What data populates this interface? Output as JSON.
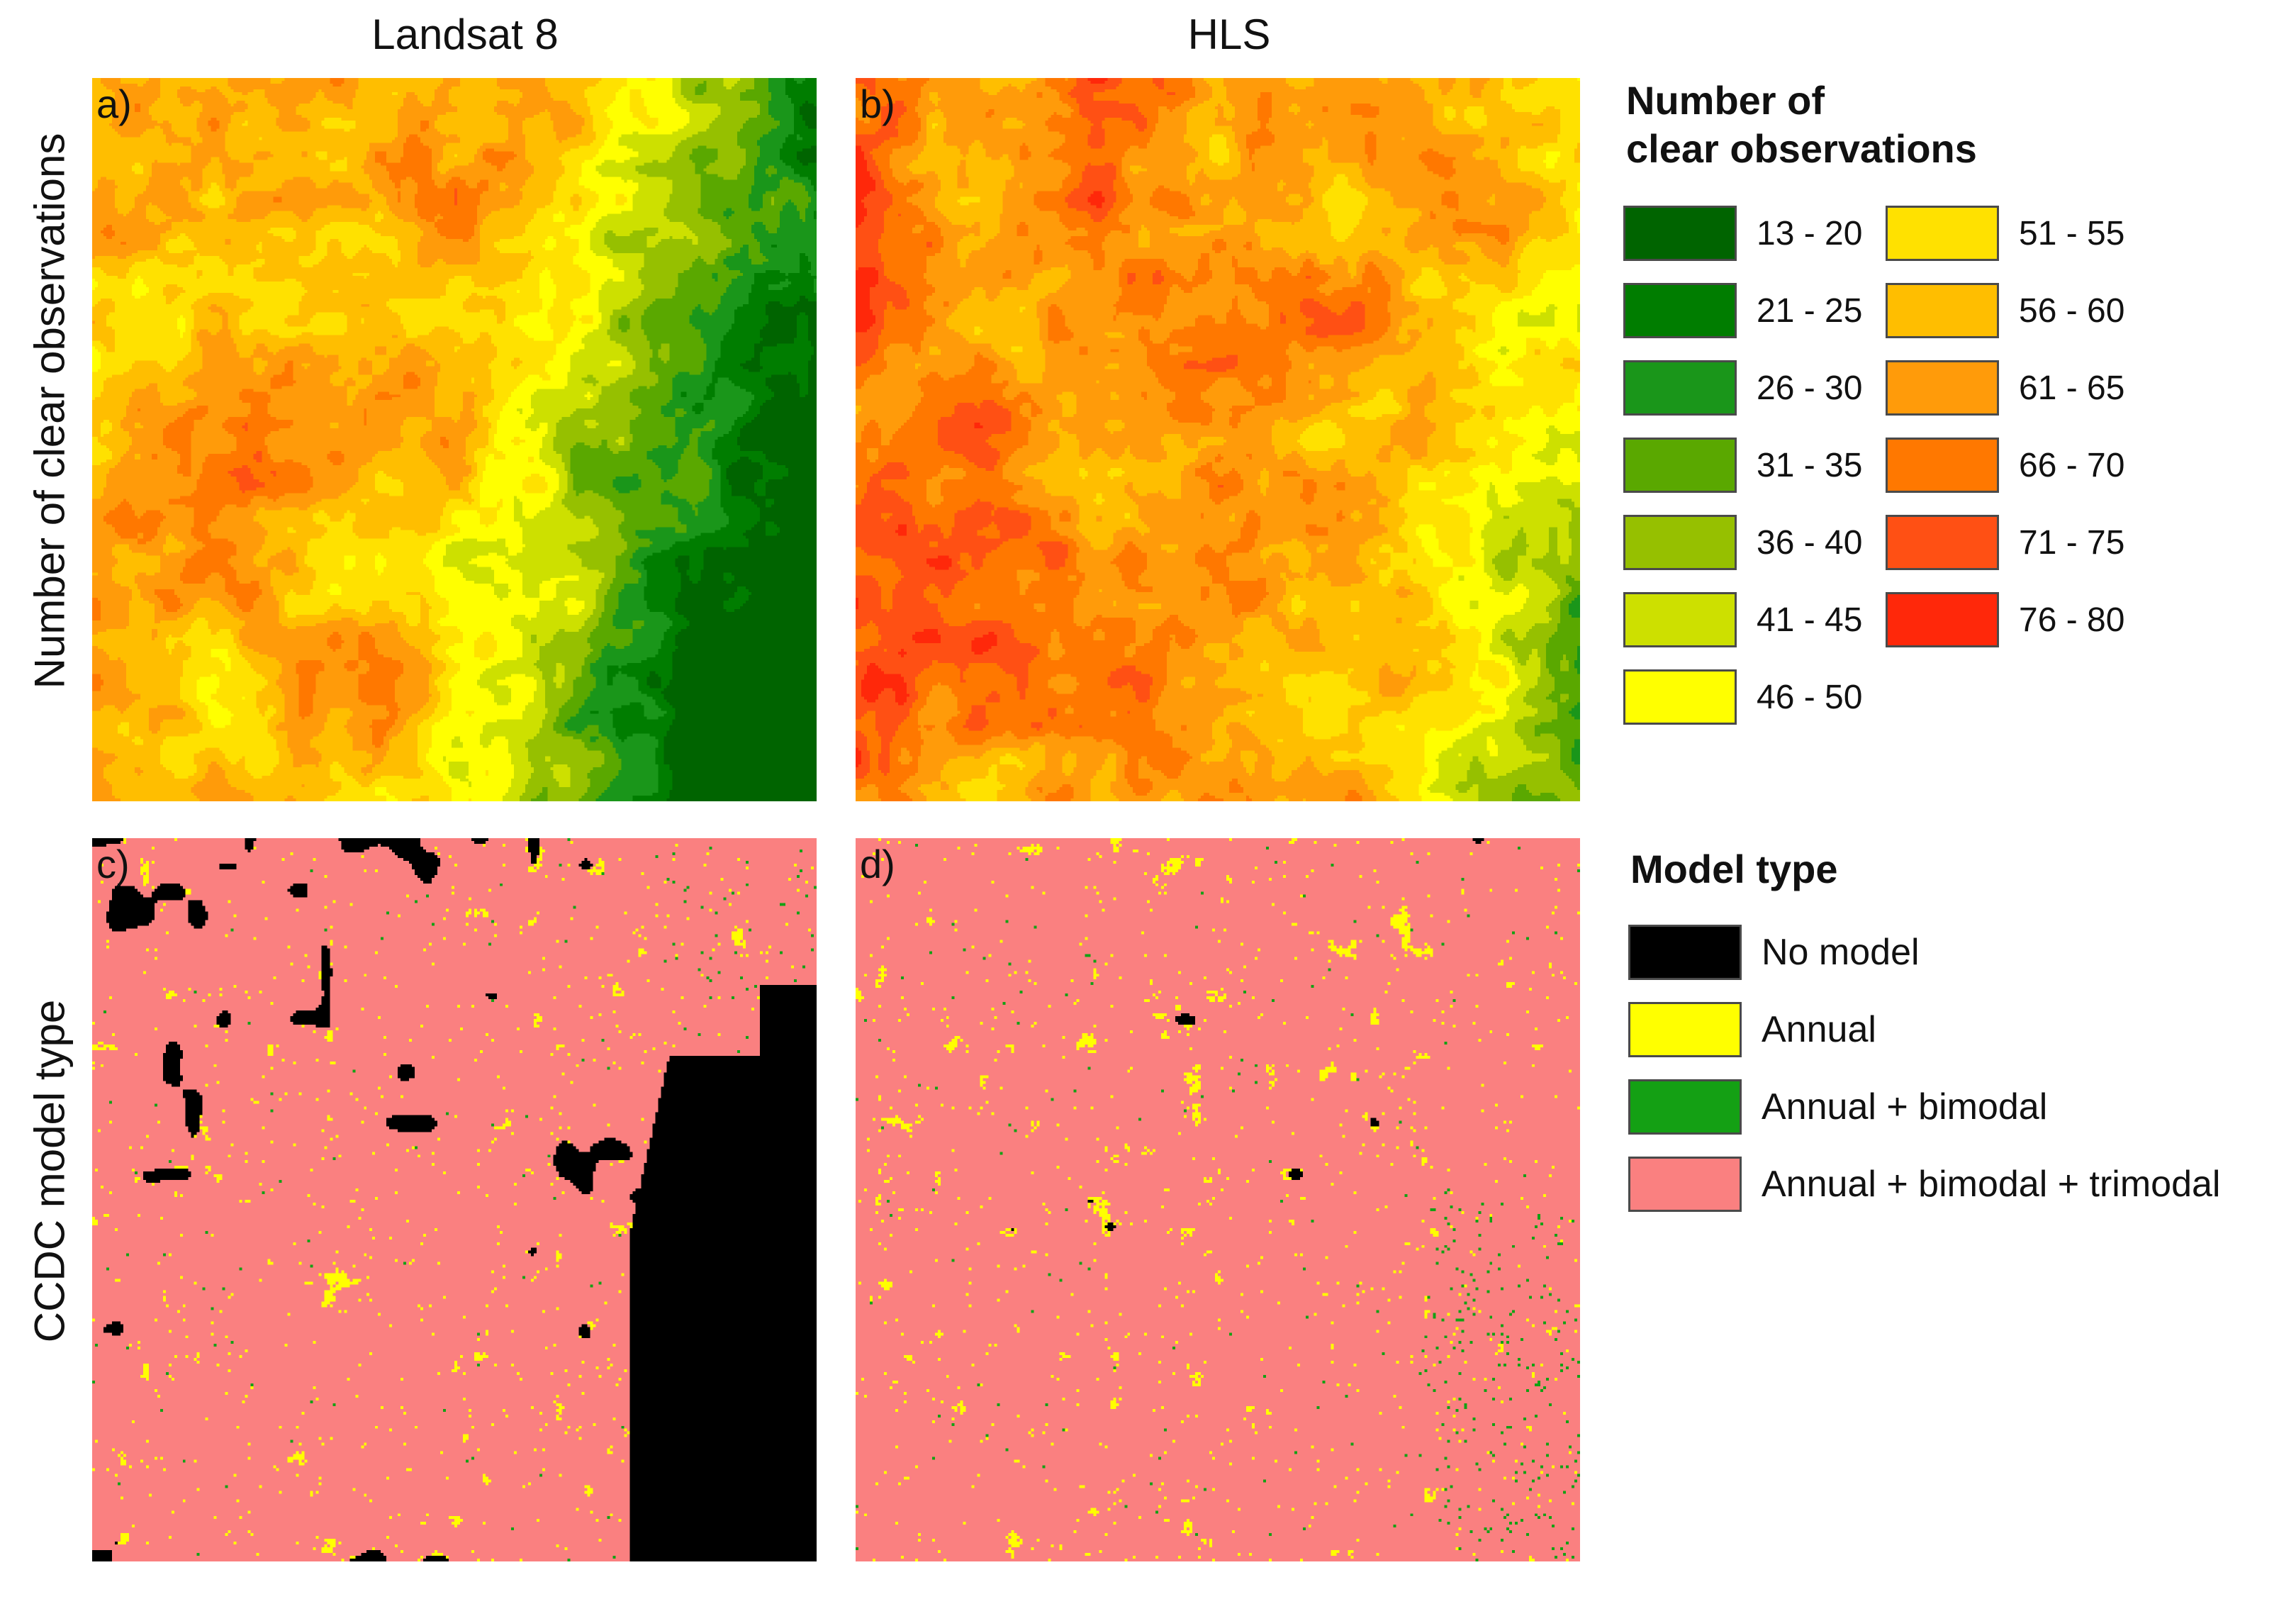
{
  "columns": [
    "Landsat 8",
    "HLS"
  ],
  "rows": [
    "Number of clear observations",
    "CCDC model type"
  ],
  "panels": [
    {
      "label": "a)",
      "sensor": "Landsat 8",
      "variable": "clear_obs"
    },
    {
      "label": "b)",
      "sensor": "HLS",
      "variable": "clear_obs"
    },
    {
      "label": "c)",
      "sensor": "Landsat 8",
      "variable": "model_type"
    },
    {
      "label": "d)",
      "sensor": "HLS",
      "variable": "model_type"
    }
  ],
  "clear_obs_legend": {
    "title_line1": "Number of",
    "title_line2": "clear observations",
    "classes": [
      {
        "label": "13 - 20",
        "color": "#006400"
      },
      {
        "label": "21 - 25",
        "color": "#007d00"
      },
      {
        "label": "26 - 30",
        "color": "#1a961a"
      },
      {
        "label": "31 - 35",
        "color": "#5aa800"
      },
      {
        "label": "36 - 40",
        "color": "#96c000"
      },
      {
        "label": "41 - 45",
        "color": "#cde000"
      },
      {
        "label": "46 - 50",
        "color": "#ffff00"
      },
      {
        "label": "51 - 55",
        "color": "#ffe100"
      },
      {
        "label": "56 - 60",
        "color": "#ffbe00"
      },
      {
        "label": "61 - 65",
        "color": "#ff9b0a"
      },
      {
        "label": "66 - 70",
        "color": "#ff7800"
      },
      {
        "label": "71 - 75",
        "color": "#ff5014"
      },
      {
        "label": "76 - 80",
        "color": "#ff280a"
      }
    ]
  },
  "model_legend": {
    "title": "Model type",
    "classes": [
      {
        "label": "No model",
        "color": "#000000"
      },
      {
        "label": "Annual",
        "color": "#ffff00"
      },
      {
        "label": "Annual + bimodal",
        "color": "#14a014"
      },
      {
        "label": "Annual + bimodal + trimodal",
        "color": "#fa8080"
      }
    ]
  }
}
